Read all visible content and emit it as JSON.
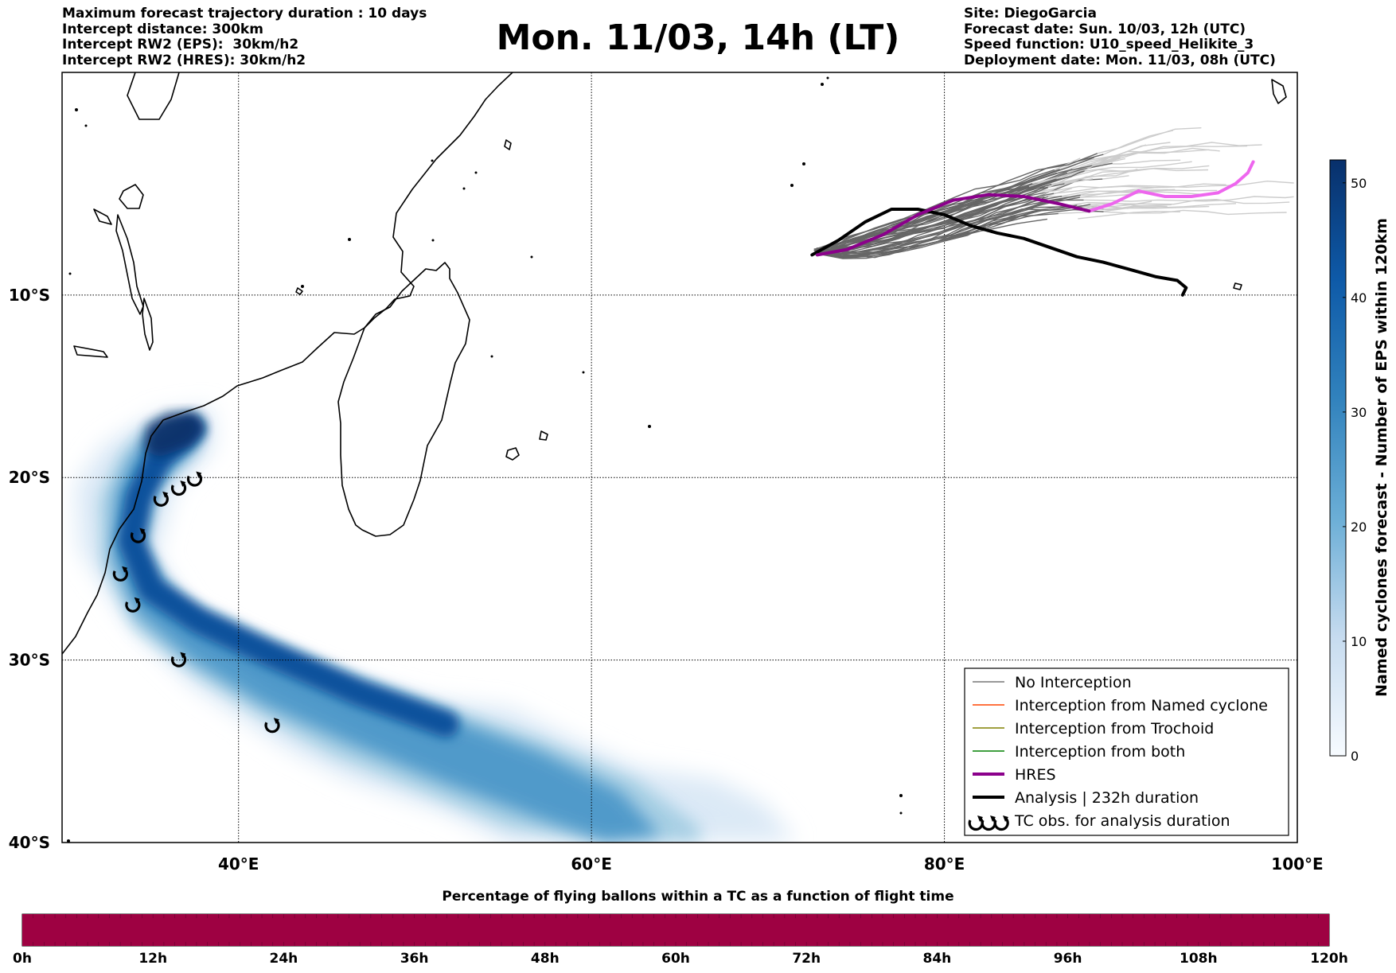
{
  "header": {
    "left": [
      "Maximum forecast trajectory duration : 10 days",
      "Intercept distance: 300km",
      "Intercept RW2 (EPS):  30km/h2",
      "Intercept RW2 (HRES): 30km/h2"
    ],
    "title": "Mon. 11/03, 14h (LT)",
    "right": [
      "Site: DiegoGarcia",
      "Forecast date: Sun. 10/03, 12h (UTC)",
      "Speed function: U10_speed_Helikite_3",
      "Deployment date: Mon. 11/03, 08h (UTC)"
    ]
  },
  "map": {
    "lon_range": [
      30,
      100
    ],
    "lat_range": [
      -40,
      2.2
    ],
    "lon_ticks": [
      {
        "value": 40,
        "label": "40°E"
      },
      {
        "value": 60,
        "label": "60°E"
      },
      {
        "value": 80,
        "label": "80°E"
      },
      {
        "value": 100,
        "label": "100°E"
      }
    ],
    "lat_ticks": [
      {
        "value": -10,
        "label": "10°S"
      },
      {
        "value": -20,
        "label": "20°S"
      },
      {
        "value": -30,
        "label": "30°S"
      },
      {
        "value": -40,
        "label": "40°S"
      }
    ],
    "gridlines": true,
    "density_colormap": "Blues",
    "tc_obs": [
      [
        37.5,
        -20.1
      ],
      [
        36.6,
        -20.6
      ],
      [
        35.6,
        -21.2
      ],
      [
        34.3,
        -23.2
      ],
      [
        33.3,
        -25.3
      ],
      [
        34.0,
        -27.0
      ],
      [
        36.6,
        -30.0
      ],
      [
        41.9,
        -33.6
      ]
    ],
    "hres_track": [
      [
        72.8,
        -7.8
      ],
      [
        74.5,
        -7.5
      ],
      [
        76.5,
        -6.7
      ],
      [
        78.5,
        -5.6
      ],
      [
        80.5,
        -4.8
      ],
      [
        82.5,
        -4.5
      ],
      [
        84.5,
        -4.6
      ],
      [
        86.5,
        -5.0
      ],
      [
        88.2,
        -5.4
      ]
    ],
    "hres_extension": [
      [
        88.2,
        -5.4
      ],
      [
        89.5,
        -5.0
      ],
      [
        91.0,
        -4.3
      ],
      [
        92.5,
        -4.6
      ],
      [
        94.0,
        -4.6
      ],
      [
        95.5,
        -4.4
      ],
      [
        96.5,
        -3.9
      ],
      [
        97.2,
        -3.3
      ],
      [
        97.5,
        -2.7
      ]
    ],
    "analysis_track": [
      [
        72.5,
        -7.8
      ],
      [
        74.0,
        -7.0
      ],
      [
        75.5,
        -6.0
      ],
      [
        77.0,
        -5.3
      ],
      [
        78.5,
        -5.3
      ],
      [
        80.0,
        -5.6
      ],
      [
        81.5,
        -6.2
      ],
      [
        83.0,
        -6.6
      ],
      [
        84.5,
        -6.9
      ],
      [
        86.0,
        -7.4
      ],
      [
        87.5,
        -7.9
      ],
      [
        89.0,
        -8.2
      ],
      [
        90.5,
        -8.6
      ],
      [
        92.0,
        -9.0
      ],
      [
        93.2,
        -9.2
      ],
      [
        93.7,
        -9.6
      ],
      [
        93.5,
        -10.0
      ]
    ],
    "colorbar": {
      "label": "Named cyclones forecast - Number of EPS within 120km",
      "min": 0,
      "max": 52,
      "ticks": [
        "0",
        "10",
        "20",
        "30",
        "40",
        "50"
      ]
    },
    "legend": [
      {
        "label": "No Interception",
        "color": "#777777",
        "kind": "line",
        "width": 1.5
      },
      {
        "label": "Interception from Named cyclone",
        "color": "#ff4500",
        "kind": "line",
        "width": 1.5
      },
      {
        "label": "Interception from Trochoid",
        "color": "#808000",
        "kind": "line",
        "width": 1.5
      },
      {
        "label": "Interception from both",
        "color": "#008000",
        "kind": "line",
        "width": 1.5
      },
      {
        "label": "HRES",
        "color": "#8b008b",
        "kind": "line",
        "width": 4
      },
      {
        "label": "Analysis | 232h duration",
        "color": "#000000",
        "kind": "line",
        "width": 4
      },
      {
        "label": "TC obs. for analysis duration",
        "color": "#000000",
        "kind": "tc"
      }
    ],
    "colors": {
      "hres": "#8b008b",
      "hres_extension": "#ee66ee",
      "analysis": "#000000",
      "eps_dark": "#666666",
      "eps_light": "#cccccc"
    }
  },
  "bottom": {
    "title": "Percentage of flying ballons within a TC as a function of flight time",
    "bar_color": "#9e0142",
    "percent_value": 100,
    "ticks": [
      "0h",
      "12h",
      "24h",
      "36h",
      "48h",
      "60h",
      "72h",
      "84h",
      "96h",
      "108h",
      "120h"
    ]
  }
}
